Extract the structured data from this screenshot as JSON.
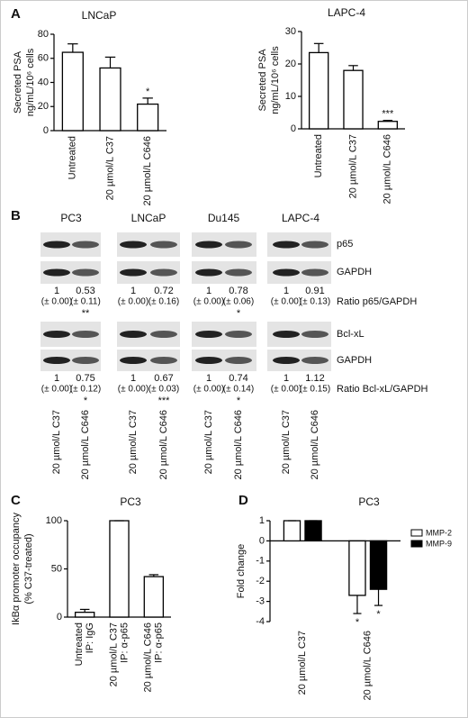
{
  "chart_data": [
    {
      "type": "bar",
      "panel": "A",
      "title": "LNCaP",
      "y_label": [
        "Secreted PSA",
        "ng/mL/10⁶ cells"
      ],
      "categories": [
        [
          "Untreated"
        ],
        [
          "20 µmol/L C37"
        ],
        [
          "20 µmol/L C646"
        ]
      ],
      "values": [
        65,
        52,
        22
      ],
      "errors": [
        7,
        9,
        5
      ],
      "annotations": [
        null,
        null,
        "*"
      ],
      "color": "#ffffff",
      "ylim": [
        0,
        80
      ],
      "yticks": [
        0,
        20,
        40,
        60,
        80
      ]
    },
    {
      "type": "bar",
      "title": "LAPC-4",
      "y_label": [
        "Secreted PSA",
        "ng/mL/10⁶ cells"
      ],
      "categories": [
        [
          "Untreated"
        ],
        [
          "20 µmol/L C37"
        ],
        [
          "20 µmol/L C646"
        ]
      ],
      "values": [
        23.5,
        18,
        2.3
      ],
      "errors": [
        2.8,
        1.5,
        0.3
      ],
      "annotations": [
        null,
        null,
        "***"
      ],
      "color": "#ffffff",
      "ylim": [
        0,
        30
      ],
      "yticks": [
        0,
        10,
        20,
        30
      ]
    },
    {
      "type": "bar",
      "panel": "C",
      "title": "PC3",
      "y_label": [
        "IkBα promoter occupancy",
        "(% C37-treated)"
      ],
      "categories": [
        [
          "Untreated",
          "IP: IgG"
        ],
        [
          "20 µmol/L C37",
          "IP: α-p65"
        ],
        [
          "20 µmol/L C646",
          "IP: α-p65"
        ]
      ],
      "values": [
        5,
        100,
        42
      ],
      "errors": [
        3,
        0,
        2
      ],
      "annotations": [
        null,
        null,
        null
      ],
      "color": "#ffffff",
      "ylim": [
        0,
        100
      ],
      "yticks": [
        0,
        50,
        100
      ]
    },
    {
      "type": "bar",
      "panel": "D",
      "title": "PC3",
      "y_label": [
        "Fold change"
      ],
      "categories": [
        [
          "20 µmol/L C37"
        ],
        [
          "20 µmol/L C646"
        ]
      ],
      "series": [
        {
          "name": "MMP-2",
          "color": "#ffffff",
          "values": [
            1,
            -2.7
          ],
          "errors": [
            0,
            0.9
          ],
          "annotations": [
            null,
            "*"
          ]
        },
        {
          "name": "MMP-9",
          "color": "#000000",
          "values": [
            1,
            -2.4
          ],
          "errors": [
            0,
            0.8
          ],
          "annotations": [
            null,
            "*"
          ]
        }
      ],
      "ylim": [
        -4,
        1
      ],
      "yticks": [
        -4,
        -3,
        -2,
        -1,
        0,
        1
      ],
      "legend": "upper right"
    }
  ],
  "blot": {
    "panel": "B",
    "lanes": [
      "20 µmol/L C37",
      "20 µmol/L C646"
    ],
    "row_labels": [
      "p65",
      "GAPDH",
      "Ratio p65/GAPDH",
      "Bcl-xL",
      "GAPDH",
      "Ratio Bcl-xL/GAPDH"
    ],
    "cell_lines": [
      {
        "name": "PC3",
        "p65": {
          "ratios": [
            1,
            0.53
          ],
          "sd": [
            "(± 0.00)",
            "(± 0.11)"
          ],
          "sig": "**"
        },
        "bclxl": {
          "ratios": [
            1,
            0.75
          ],
          "sd": [
            "(± 0.00)",
            "(± 0.12)"
          ],
          "sig": "*"
        }
      },
      {
        "name": "LNCaP",
        "p65": {
          "ratios": [
            1,
            0.72
          ],
          "sd": [
            "(± 0.00)",
            "(± 0.16)"
          ],
          "sig": null
        },
        "bclxl": {
          "ratios": [
            1,
            0.67
          ],
          "sd": [
            "(± 0.00)",
            "(± 0.03)"
          ],
          "sig": "***"
        }
      },
      {
        "name": "Du145",
        "p65": {
          "ratios": [
            1,
            0.78
          ],
          "sd": [
            "(± 0.00)",
            "(± 0.06)"
          ],
          "sig": "*"
        },
        "bclxl": {
          "ratios": [
            1,
            0.74
          ],
          "sd": [
            "(± 0.00)",
            "(± 0.14)"
          ],
          "sig": "*"
        }
      },
      {
        "name": "LAPC-4",
        "p65": {
          "ratios": [
            1,
            0.91
          ],
          "sd": [
            "(± 0.00)",
            "(± 0.13)"
          ],
          "sig": null
        },
        "bclxl": {
          "ratios": [
            1,
            1.12
          ],
          "sd": [
            "(± 0.00)",
            "(± 0.15)"
          ],
          "sig": null
        }
      }
    ]
  }
}
